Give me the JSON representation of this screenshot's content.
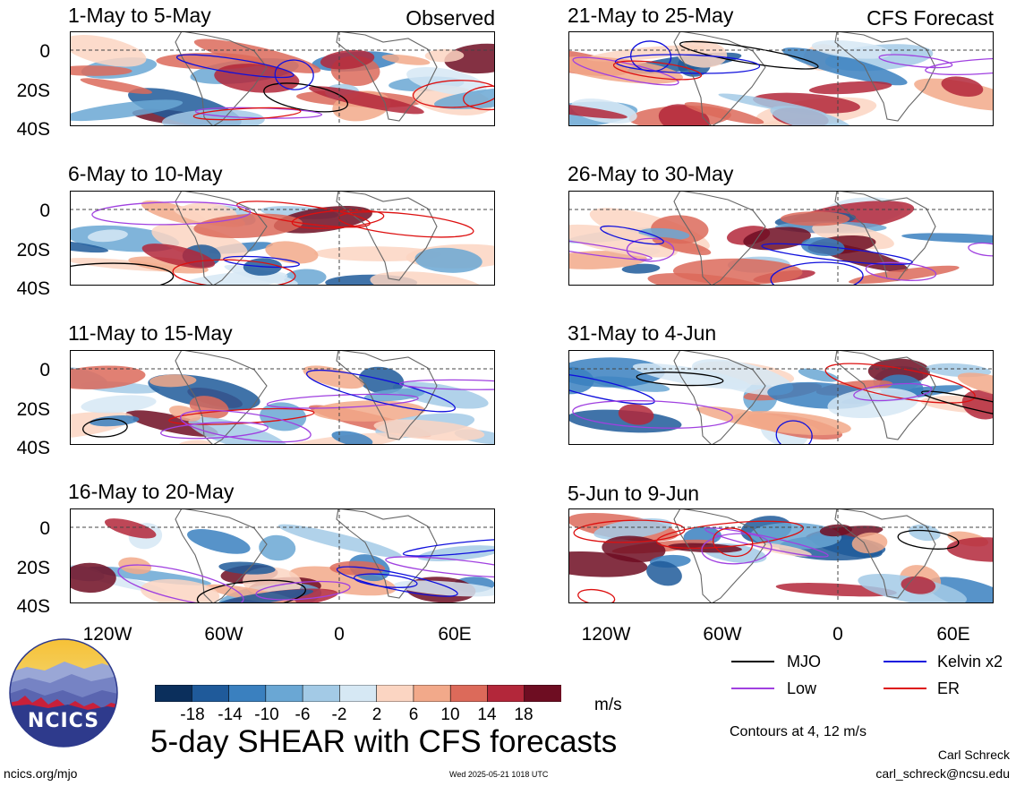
{
  "header": {
    "observed_label": "Observed",
    "forecast_label": "CFS Forecast"
  },
  "lat_labels": [
    "0",
    "20S",
    "40S"
  ],
  "lon_labels": [
    "120W",
    "60W",
    "0",
    "60E"
  ],
  "panels": [
    {
      "title": "1-May to 5-May",
      "kind": "observed"
    },
    {
      "title": "6-May to 10-May",
      "kind": "observed"
    },
    {
      "title": "11-May to 15-May",
      "kind": "observed"
    },
    {
      "title": "16-May to 20-May",
      "kind": "observed"
    },
    {
      "title": "21-May to 25-May",
      "kind": "forecast"
    },
    {
      "title": "26-May to 30-May",
      "kind": "forecast"
    },
    {
      "title": "31-May to 4-Jun",
      "kind": "forecast"
    },
    {
      "title": "5-Jun to 9-Jun",
      "kind": "forecast"
    }
  ],
  "chart_data": {
    "type": "heatmap",
    "title": "5-day SHEAR with CFS forecasts",
    "units": "m/s",
    "colorbar": {
      "labels": [
        "-18",
        "-14",
        "-10",
        "-6",
        "-2",
        "2",
        "6",
        "10",
        "14",
        "18"
      ],
      "colors": [
        "#0b2f5c",
        "#1f5a9a",
        "#3a80bf",
        "#6aa7d4",
        "#a3cae6",
        "#d6e8f4",
        "#ffffff",
        "#fbd5c2",
        "#f2a98a",
        "#dc6a5a",
        "#b3273a",
        "#6e0d22"
      ]
    },
    "contour_note": "Contours at 4, 12 m/s",
    "legend": [
      {
        "label": "MJO",
        "color": "#000000"
      },
      {
        "label": "Kelvin x2",
        "color": "#1010dd"
      },
      {
        "label": "Low",
        "color": "#a040e0"
      },
      {
        "label": "ER",
        "color": "#dd1010"
      }
    ]
  },
  "footer": {
    "site": "ncics.org/mjo",
    "timestamp": "Wed 2025-05-21 1018 UTC",
    "author": "Carl Schreck",
    "email": "carl_schreck@ncsu.edu",
    "logo_text": "NCICS"
  }
}
